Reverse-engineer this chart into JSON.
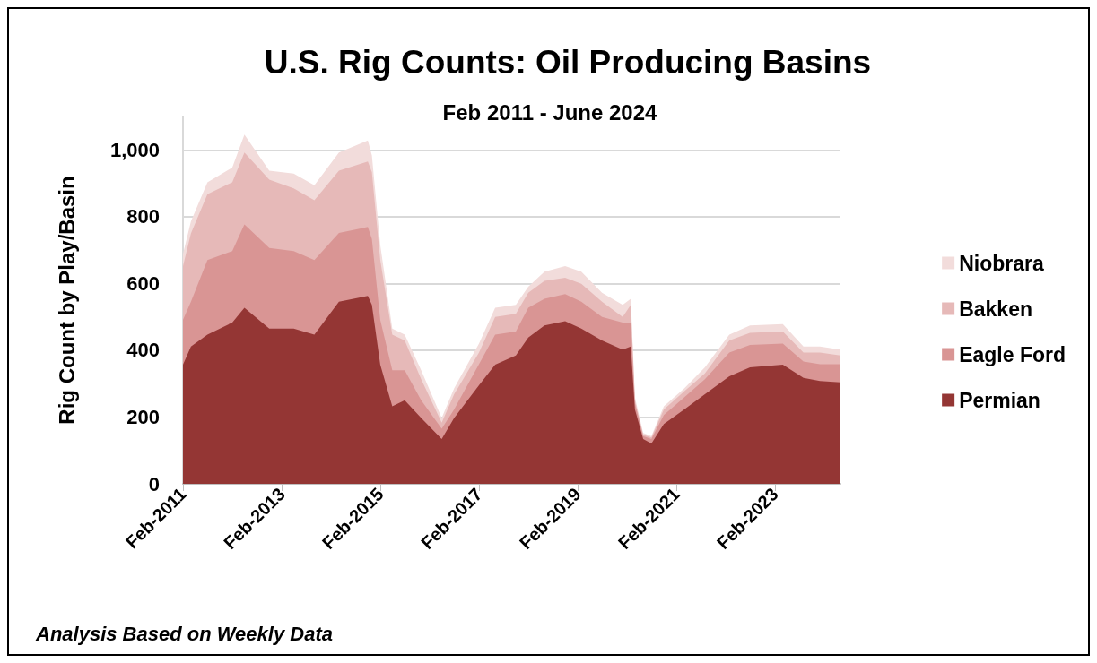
{
  "chart_data": {
    "type": "area",
    "title": "U.S. Rig Counts: Oil Producing Basins",
    "subtitle": "Feb 2011 - June 2024",
    "ylabel": "Rig Count by Play/Basin",
    "annotations": [
      "Analysis Based on Weekly Data"
    ],
    "stacked": true,
    "legend": "right",
    "grid": "y",
    "marker": "none",
    "x": [
      "2011-02",
      "2011-04",
      "2011-08",
      "2012-02",
      "2012-05",
      "2012-11",
      "2013-05",
      "2013-10",
      "2014-04",
      "2014-11",
      "2014-12",
      "2015-02",
      "2015-05",
      "2015-08",
      "2015-12",
      "2016-05",
      "2016-08",
      "2017-02",
      "2017-06",
      "2017-11",
      "2018-02",
      "2018-06",
      "2018-11",
      "2019-03",
      "2019-08",
      "2020-01",
      "2020-03",
      "2020-04",
      "2020-06",
      "2020-08",
      "2020-11",
      "2021-04",
      "2021-09",
      "2022-03",
      "2022-08",
      "2023-04",
      "2023-09",
      "2024-01",
      "2024-06"
    ],
    "xlim": [
      "2011-02",
      "2024-06"
    ],
    "xticks": [
      {
        "value": "2011-02",
        "label": "Feb-2011"
      },
      {
        "value": "2013-02",
        "label": "Feb-2013"
      },
      {
        "value": "2015-02",
        "label": "Feb-2015"
      },
      {
        "value": "2017-02",
        "label": "Feb-2017"
      },
      {
        "value": "2019-02",
        "label": "Feb-2019"
      },
      {
        "value": "2021-02",
        "label": "Feb-2021"
      },
      {
        "value": "2023-02",
        "label": "Feb-2023"
      }
    ],
    "ylim": [
      0,
      1100
    ],
    "yticks": [
      0,
      200,
      400,
      600,
      800,
      {
        "value": 1000,
        "label": "1,000"
      }
    ],
    "series": [
      {
        "name": "Permian",
        "color": "#943634",
        "values": [
          357,
          411,
          447,
          483,
          527,
          465,
          465,
          447,
          545,
          563,
          536,
          357,
          232,
          250,
          197,
          134,
          197,
          295,
          357,
          384,
          438,
          474,
          487,
          465,
          429,
          402,
          411,
          223,
          134,
          121,
          179,
          223,
          268,
          322,
          349,
          357,
          317,
          308,
          304
        ]
      },
      {
        "name": "Eagle Ford",
        "color": "#d99594",
        "values": [
          134,
          134,
          223,
          214,
          250,
          241,
          232,
          223,
          206,
          206,
          197,
          134,
          108,
          90,
          53,
          31,
          26,
          63,
          90,
          72,
          89,
          80,
          81,
          80,
          71,
          81,
          72,
          18,
          9,
          13,
          27,
          36,
          45,
          71,
          67,
          63,
          49,
          50,
          54
        ]
      },
      {
        "name": "Bakken",
        "color": "#e6b9b8",
        "values": [
          161,
          205,
          197,
          206,
          215,
          205,
          188,
          179,
          187,
          196,
          200,
          179,
          107,
          89,
          63,
          18,
          45,
          35,
          53,
          53,
          45,
          54,
          49,
          54,
          45,
          17,
          53,
          9,
          4,
          5,
          17,
          18,
          18,
          36,
          36,
          36,
          27,
          35,
          26
        ]
      },
      {
        "name": "Niobrara",
        "color": "#f2dcdb",
        "values": [
          36,
          36,
          36,
          44,
          54,
          27,
          44,
          45,
          54,
          63,
          50,
          45,
          18,
          18,
          27,
          14,
          18,
          27,
          27,
          27,
          18,
          27,
          35,
          36,
          27,
          36,
          18,
          9,
          5,
          4,
          9,
          9,
          18,
          18,
          22,
          22,
          18,
          18,
          18
        ]
      }
    ]
  }
}
